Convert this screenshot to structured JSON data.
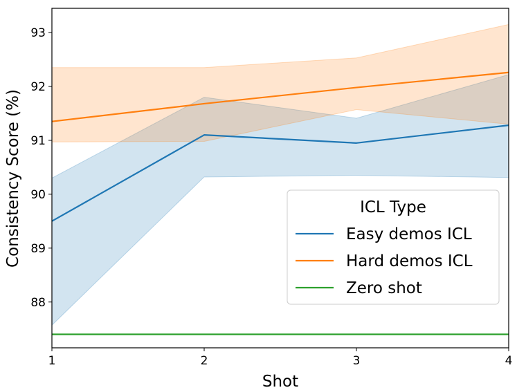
{
  "chart_data": {
    "type": "line",
    "title": "",
    "xlabel": "Shot",
    "ylabel": "Consistency Score (%)",
    "x": [
      1,
      2,
      3,
      4
    ],
    "xlim": [
      1,
      4
    ],
    "ylim": [
      87.15,
      93.45
    ],
    "xticks": [
      "1",
      "2",
      "3",
      "4"
    ],
    "yticks": [
      "88",
      "89",
      "90",
      "91",
      "92",
      "93"
    ],
    "grid": false,
    "legend": {
      "title": "ICL Type",
      "placement": "center-right"
    },
    "series": [
      {
        "name": "Easy demos ICL",
        "color": "#1f77b4",
        "values": [
          89.5,
          91.1,
          90.95,
          91.28
        ],
        "band_lower": [
          87.57,
          90.32,
          90.35,
          90.31
        ],
        "band_upper": [
          90.3,
          91.8,
          91.41,
          92.22
        ]
      },
      {
        "name": "Hard demos ICL",
        "color": "#ff7f0e",
        "values": [
          91.35,
          91.68,
          91.98,
          92.26
        ],
        "band_lower": [
          90.97,
          90.98,
          91.57,
          91.3
        ],
        "band_upper": [
          92.35,
          92.35,
          92.53,
          93.15
        ]
      },
      {
        "name": "Zero shot",
        "color": "#2ca02c",
        "values": [
          87.4,
          87.4,
          87.4,
          87.4
        ]
      }
    ]
  }
}
